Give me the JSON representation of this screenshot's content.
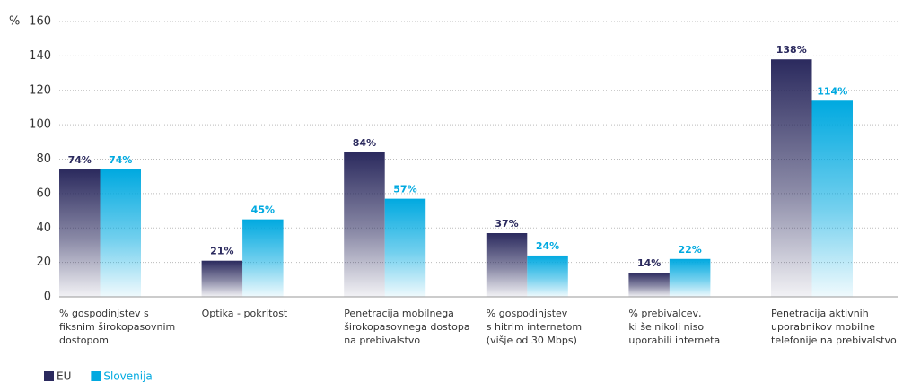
{
  "chart_data": {
    "type": "bar",
    "y_axis_label": "%",
    "categories": [
      [
        "% gospodinjstev s",
        "fiksnim širokopasovnim",
        "dostopom"
      ],
      [
        "Optika - pokritost"
      ],
      [
        "Penetracija mobilnega",
        "širokopasovnega dostopa",
        "na prebivalstvo"
      ],
      [
        "% gospodinjstev",
        "s hitrim internetom",
        "(višje od 30 Mbps)"
      ],
      [
        "% prebivalcev,",
        "ki še nikoli niso",
        "uporabili interneta"
      ],
      [
        "Penetracija aktivnih",
        "uporabnikov mobilne",
        "telefonije na prebivalstvo"
      ]
    ],
    "series": [
      {
        "name": "EU",
        "color": "#2b2a5e",
        "values": [
          74,
          21,
          84,
          37,
          14,
          138
        ],
        "value_labels": [
          "74%",
          "21%",
          "84%",
          "37%",
          "14%",
          "138%"
        ]
      },
      {
        "name": "Slovenija",
        "color": "#00a9e0",
        "values": [
          74,
          45,
          57,
          24,
          22,
          114
        ],
        "value_labels": [
          "74%",
          "45%",
          "57%",
          "24%",
          "22%",
          "114%"
        ]
      }
    ],
    "ylim": [
      0,
      160
    ],
    "yticks": [
      0,
      20,
      40,
      60,
      80,
      100,
      120,
      140,
      160
    ],
    "grid": true
  }
}
